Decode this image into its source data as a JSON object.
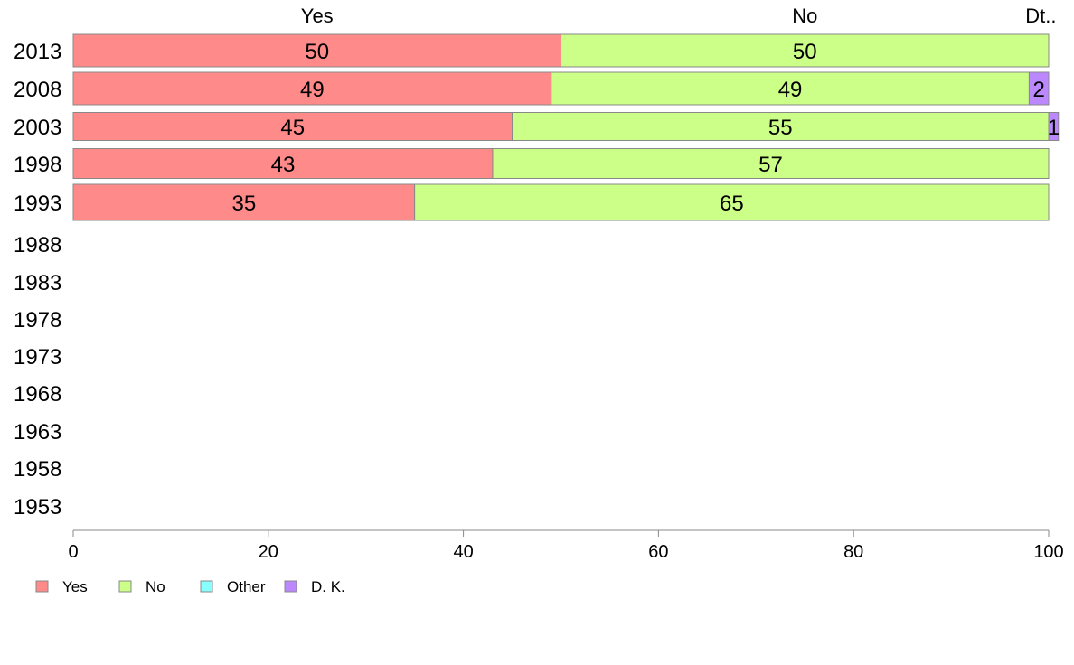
{
  "chart_data": {
    "type": "bar",
    "orientation": "horizontal",
    "stacked": true,
    "categories": [
      "2013",
      "2008",
      "2003",
      "1998",
      "1993",
      "1988",
      "1983",
      "1978",
      "1973",
      "1968",
      "1963",
      "1958",
      "1953"
    ],
    "series": [
      {
        "name": "Yes",
        "color": "#ff8a8a",
        "values": [
          50,
          49,
          45,
          43,
          35,
          null,
          null,
          null,
          null,
          null,
          null,
          null,
          null
        ]
      },
      {
        "name": "No",
        "color": "#ccff88",
        "values": [
          50,
          49,
          55,
          57,
          65,
          null,
          null,
          null,
          null,
          null,
          null,
          null,
          null
        ]
      },
      {
        "name": "Other",
        "color": "#88ffff",
        "values": [
          0,
          0,
          0,
          0,
          0,
          null,
          null,
          null,
          null,
          null,
          null,
          null,
          null
        ]
      },
      {
        "name": "D. K.",
        "color": "#bb88ff",
        "values": [
          0,
          2,
          1,
          0,
          0,
          null,
          null,
          null,
          null,
          null,
          null,
          null,
          null
        ]
      }
    ],
    "segment_labels": [
      [
        "50",
        "50",
        "",
        ""
      ],
      [
        "49",
        "49",
        "",
        "2"
      ],
      [
        "45",
        "55",
        "",
        "1"
      ],
      [
        "43",
        "57",
        "",
        ""
      ],
      [
        "35",
        "65",
        "",
        ""
      ]
    ],
    "top_labels": [
      "Yes",
      "No",
      "Dt.."
    ],
    "xlim": [
      0,
      100
    ],
    "xticks": [
      "0",
      "20",
      "40",
      "60",
      "80",
      "100"
    ],
    "grid": false,
    "legend_position": "bottom-left"
  }
}
